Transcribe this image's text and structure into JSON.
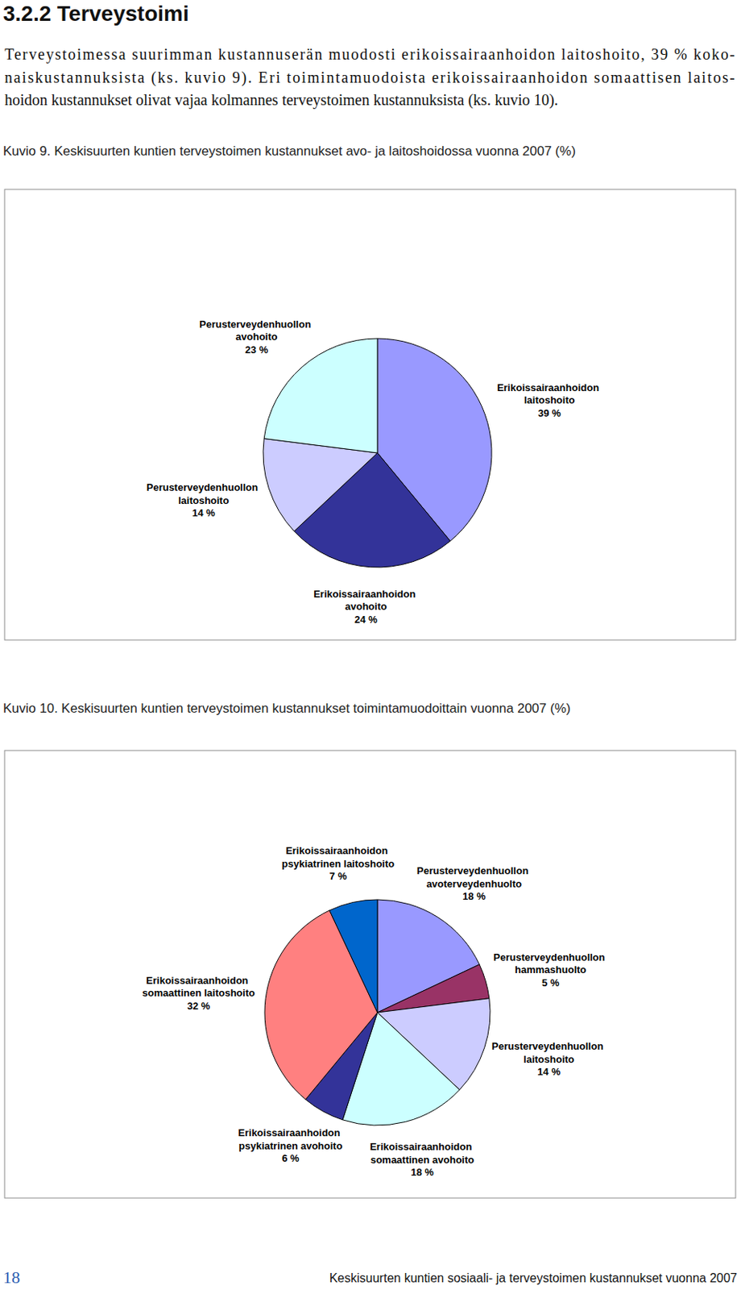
{
  "document": {
    "heading": "3.2.2 Terveystoimi",
    "paragraph": [
      "Terveystoimessa suurimman kustannuserän muodosti erikoissairaanhoidon laitoshoito, 39 % koko-",
      "naiskustannuksista (ks. kuvio 9). Eri toimintamuodoista erikoissairaanhoidon somaattisen laitos-",
      "hoidon kustannukset olivat vajaa kolmannes terveystoimen kustannuksista (ks. kuvio 10)."
    ],
    "page_number": "18",
    "footer": "Keskisuurten kuntien sosiaali- ja terveystoimen kustannukset vuonna 2007"
  },
  "chart_data": [
    {
      "type": "pie",
      "title": "Kuvio 9. Keskisuurten kuntien terveystoimen kustannukset avo- ja laitoshoidossa vuonna 2007 (%)",
      "categories": [
        "Erikoissairaanhoidon laitoshoito",
        "Erikoissairaanhoidon avohoito",
        "Perusterveydenhuollon laitoshoito",
        "Perusterveydenhuollon avohoito"
      ],
      "values": [
        39,
        24,
        14,
        23
      ],
      "value_labels": [
        "39 %",
        "24 %",
        "14 %",
        "23 %"
      ],
      "colors": [
        "#9999ff",
        "#333399",
        "#ccccff",
        "#ccffff"
      ],
      "data_labels": true
    },
    {
      "type": "pie",
      "title": "Kuvio 10. Keskisuurten kuntien terveystoimen kustannukset toimintamuodoittain vuonna 2007 (%)",
      "categories": [
        "Perusterveydenhuollon avoterveydenhuolto",
        "Perusterveydenhuollon hammashuolto",
        "Perusterveydenhuollon laitoshoito",
        "Erikoissairaanhoidon somaattinen avohoito",
        "Erikoissairaanhoidon psykiatrinen avohoito",
        "Erikoissairaanhoidon somaattinen laitoshoito",
        "Erikoissairaanhoidon psykiatrinen laitoshoito"
      ],
      "values": [
        18,
        5,
        14,
        18,
        6,
        32,
        7
      ],
      "value_labels": [
        "18 %",
        "5 %",
        "14 %",
        "18 %",
        "6 %",
        "32 %",
        "7 %"
      ],
      "colors": [
        "#9999ff",
        "#993366",
        "#ccccff",
        "#ccffff",
        "#333399",
        "#ff8080",
        "#0066cc"
      ],
      "data_labels": true
    }
  ]
}
